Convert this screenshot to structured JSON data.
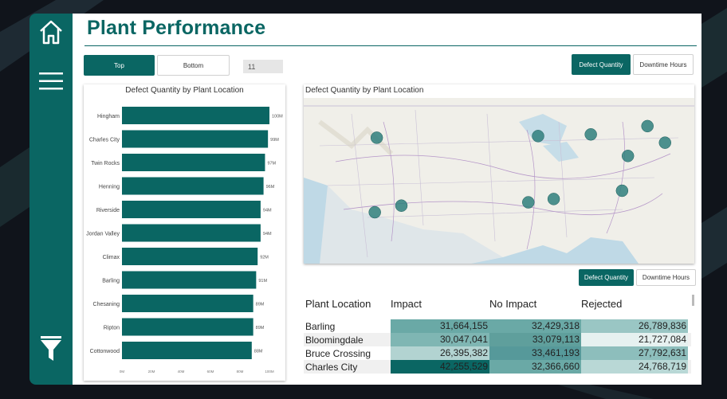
{
  "page": {
    "title": "Plant Performance"
  },
  "colors": {
    "accent": "#0a6663",
    "background": "#10141b",
    "panel": "#ffffff"
  },
  "sidebar": {
    "icons": [
      "home-icon",
      "menu-icon",
      "filter-icon"
    ]
  },
  "rank_toggle": {
    "options": [
      "Top",
      "Bottom"
    ],
    "selected": "Top"
  },
  "count_input": {
    "value": "11"
  },
  "metric_toggle_top": {
    "options": [
      "Defect Quantity",
      "Downtime Hours"
    ],
    "selected": "Defect Quantity"
  },
  "metric_toggle_table": {
    "options": [
      "Defect Quantity",
      "Downtime Hours"
    ],
    "selected": "Defect Quantity"
  },
  "chart_data": {
    "type": "bar",
    "orientation": "horizontal",
    "title": "Defect Quantity by Plant Location",
    "categories": [
      "Hingham",
      "Charles City",
      "Twin Rocks",
      "Henning",
      "Riverside",
      "Jordan Valley",
      "Climax",
      "Barling",
      "Chesaning",
      "Ripton",
      "Cottonwood"
    ],
    "values": [
      100,
      99,
      97,
      96,
      94,
      94,
      92,
      91,
      89,
      89,
      88
    ],
    "value_labels": [
      "100M",
      "99M",
      "97M",
      "96M",
      "94M",
      "94M",
      "92M",
      "91M",
      "89M",
      "89M",
      "88M"
    ],
    "x_ticks": [
      "0M",
      "20M",
      "40M",
      "60M",
      "80M",
      "100M"
    ],
    "xlim": [
      0,
      100
    ],
    "bar_color": "#0a6663",
    "grid": false
  },
  "map": {
    "title": "Defect Quantity by Plant Location",
    "markers": [
      {
        "x": 0.187,
        "y": 0.24
      },
      {
        "x": 0.6,
        "y": 0.23
      },
      {
        "x": 0.735,
        "y": 0.22
      },
      {
        "x": 0.88,
        "y": 0.17
      },
      {
        "x": 0.925,
        "y": 0.27
      },
      {
        "x": 0.83,
        "y": 0.35
      },
      {
        "x": 0.815,
        "y": 0.56
      },
      {
        "x": 0.64,
        "y": 0.61
      },
      {
        "x": 0.575,
        "y": 0.63
      },
      {
        "x": 0.25,
        "y": 0.65
      },
      {
        "x": 0.182,
        "y": 0.69
      }
    ]
  },
  "table": {
    "headers": [
      "Plant Location",
      "Impact",
      "No Impact",
      "Rejected"
    ],
    "rows": [
      {
        "location": "Barling",
        "impact": "31,664,155",
        "no_impact": "32,429,318",
        "rejected": "26,789,836",
        "shade": [
          "#6aa9a6",
          "#6aa9a6",
          "#9ac6c4"
        ]
      },
      {
        "location": "Bloomingdale",
        "impact": "30,047,041",
        "no_impact": "33,079,113",
        "rejected": "21,727,084",
        "shade": [
          "#7fb6b3",
          "#5f9f9c",
          "#e6f1f0"
        ]
      },
      {
        "location": "Bruce Crossing",
        "impact": "26,395,382",
        "no_impact": "33,461,193",
        "rejected": "27,792,631",
        "shade": [
          "#b2d3d1",
          "#56999a",
          "#8dbebc"
        ]
      },
      {
        "location": "Charles City",
        "impact": "42,255,529",
        "no_impact": "32,366,660",
        "rejected": "24,768,719",
        "shade": [
          "#0a6663",
          "#6aa9a6",
          "#b9d8d6"
        ]
      }
    ]
  }
}
